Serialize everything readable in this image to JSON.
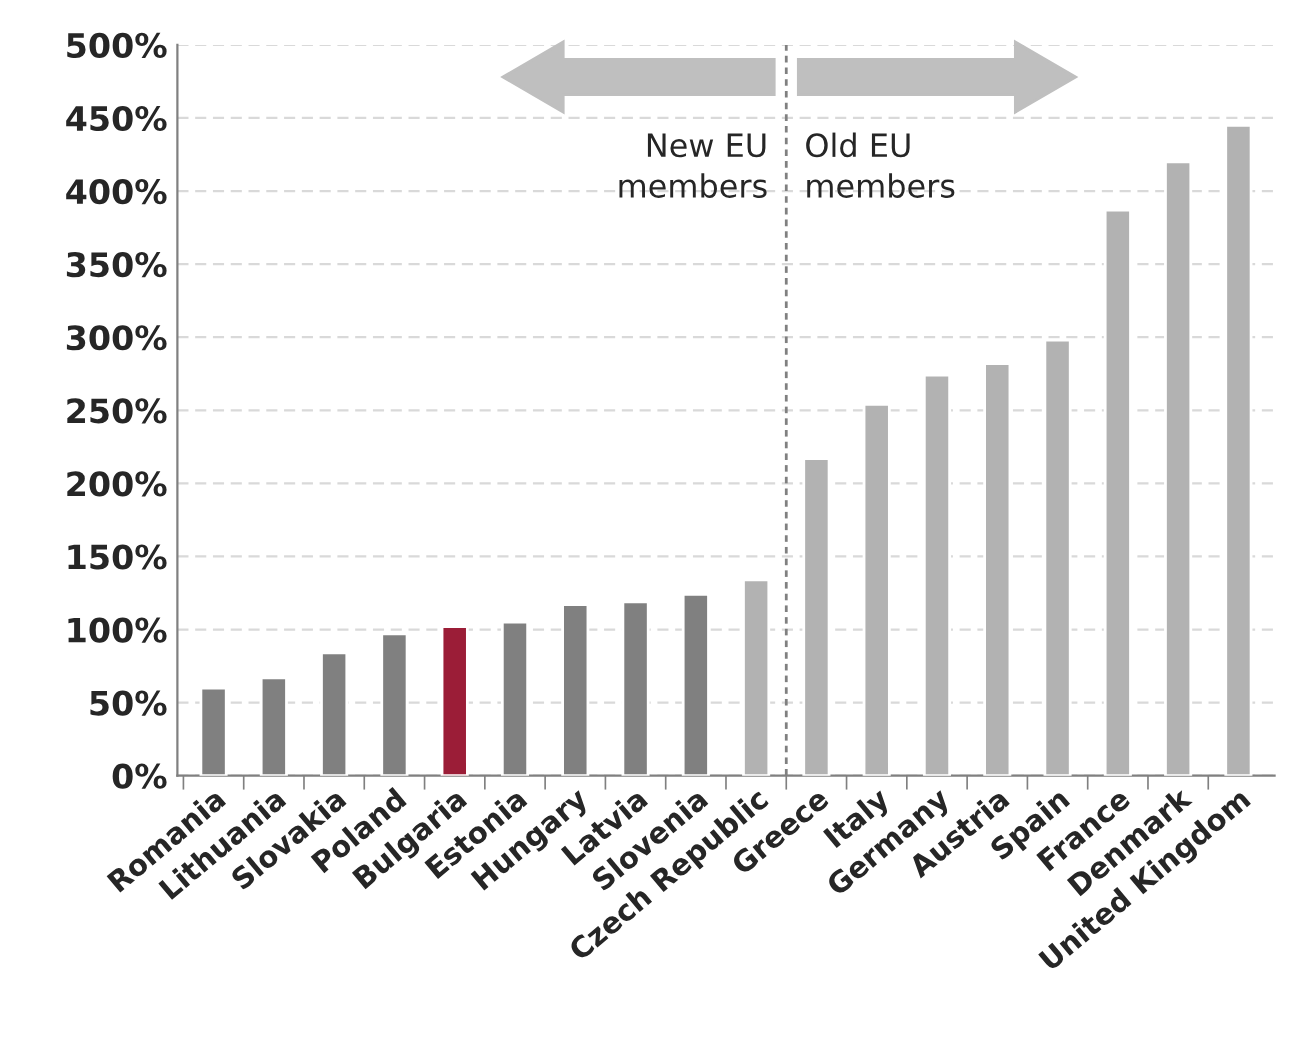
{
  "chart_data": {
    "type": "bar",
    "categories": [
      "Romania",
      "Lithuania",
      "Slovakia",
      "Poland",
      "Bulgaria",
      "Estonia",
      "Hungary",
      "Latvia",
      "Slovenia",
      "Czech Republic",
      "Greece",
      "Italy",
      "Germany",
      "Austria",
      "Spain",
      "France",
      "Denmark",
      "United Kingdom"
    ],
    "values": [
      60,
      67,
      84,
      97,
      102,
      105,
      117,
      119,
      124,
      134,
      217,
      254,
      274,
      282,
      298,
      387,
      420,
      445
    ],
    "colors": [
      "#808080",
      "#808080",
      "#808080",
      "#808080",
      "#9b1d37",
      "#808080",
      "#808080",
      "#808080",
      "#808080",
      "#b2b2b2",
      "#b2b2b2",
      "#b2b2b2",
      "#b2b2b2",
      "#b2b2b2",
      "#b2b2b2",
      "#b2b2b2",
      "#b2b2b2",
      "#b2b2b2"
    ],
    "ylim": [
      0,
      500
    ],
    "yticks": [
      {
        "value": 0,
        "label": "0%"
      },
      {
        "value": 50,
        "label": "50%"
      },
      {
        "value": 100,
        "label": "100%"
      },
      {
        "value": 150,
        "label": "150%"
      },
      {
        "value": 200,
        "label": "200%"
      },
      {
        "value": 250,
        "label": "250%"
      },
      {
        "value": 300,
        "label": "300%"
      },
      {
        "value": 350,
        "label": "350%"
      },
      {
        "value": 400,
        "label": "400%"
      },
      {
        "value": 450,
        "label": "450%"
      },
      {
        "value": 500,
        "label": "500%"
      }
    ],
    "grid": "y",
    "annotations": [
      "New EU\nmembers",
      "Old EU\nmembers"
    ]
  }
}
